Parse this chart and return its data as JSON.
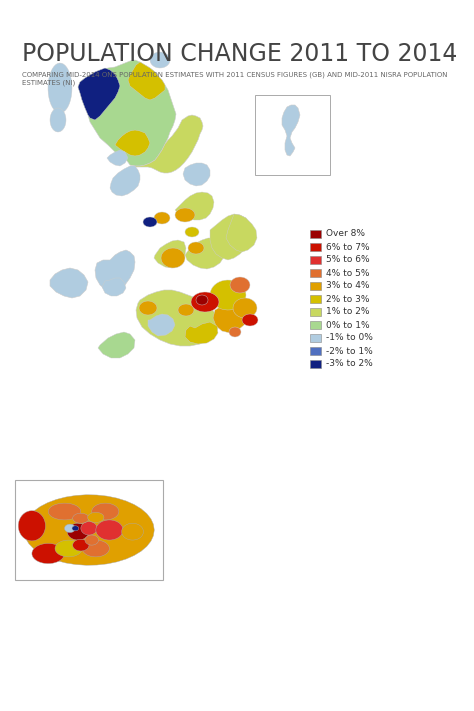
{
  "title": "POPULATION CHANGE 2011 TO 2014",
  "subtitle": "COMPARING MID-2014 ONS POPULATION ESTIMATES WITH 2011 CENSUS FIGURES (GB) AND MID-2011 NISRA POPULATION ESTIMATES (NI)",
  "background_color": "#ffffff",
  "legend_items": [
    {
      "label": "Over 8%",
      "color": "#9b0000"
    },
    {
      "label": "6% to 7%",
      "color": "#cc1100"
    },
    {
      "label": "5% to 6%",
      "color": "#e03030"
    },
    {
      "label": "4% to 5%",
      "color": "#e07030"
    },
    {
      "label": "3% to 4%",
      "color": "#e0a000"
    },
    {
      "label": "2% to 3%",
      "color": "#d4c000"
    },
    {
      "label": "1% to 2%",
      "color": "#c8d860"
    },
    {
      "label": "0% to 1%",
      "color": "#a8d890"
    },
    {
      "label": "-1% to 0%",
      "color": "#b0cce0"
    },
    {
      "label": "-2% to 1%",
      "color": "#5070c0"
    },
    {
      "label": "-3% to 2%",
      "color": "#102080"
    }
  ],
  "title_fontsize": 17,
  "subtitle_fontsize": 5.0,
  "legend_fontsize": 6.5,
  "title_color": "#444444",
  "subtitle_color": "#666666"
}
